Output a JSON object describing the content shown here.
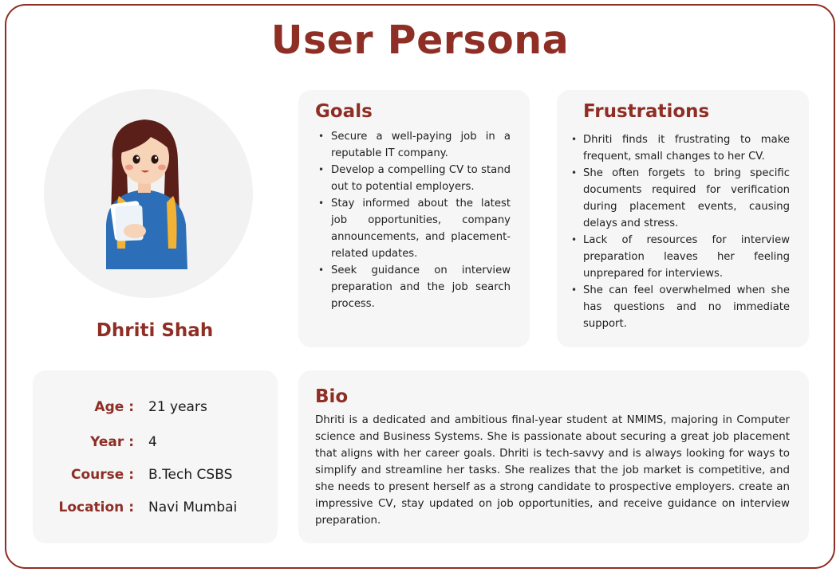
{
  "page": {
    "title": "User Persona"
  },
  "persona": {
    "name": "Dhriti Shah",
    "details": [
      {
        "label": "Age :",
        "value": "21 years"
      },
      {
        "label": "Year :",
        "value": "4"
      },
      {
        "label": "Course :",
        "value": "B.Tech CSBS"
      },
      {
        "label": "Location :",
        "value": "Navi Mumbai"
      }
    ]
  },
  "goals": {
    "title": "Goals",
    "items": [
      "Secure a well-paying job in a reputable IT company.",
      "Develop a compelling CV to stand out to potential employers.",
      "Stay informed about the latest job opportunities, company announcements, and placement-related updates.",
      "Seek guidance on interview preparation and the job search process."
    ]
  },
  "frustrations": {
    "title": "Frustrations",
    "items": [
      "Dhriti finds it frustrating to make frequent, small changes to her CV.",
      "She often forgets to bring specific documents required for verification during placement events, causing delays and stress.",
      "Lack of resources for interview preparation leaves her feeling unprepared for interviews.",
      "She can feel overwhelmed when she has questions and no immediate support."
    ]
  },
  "bio": {
    "title": "Bio",
    "text": "Dhriti is a dedicated and ambitious final-year student at NMIMS, majoring in Computer science and Business Systems. She is passionate about securing a great job placement that aligns with her career goals. Dhriti is tech-savvy and is always looking for ways to simplify and streamline her tasks. She realizes that the job market is competitive, and she needs to present herself as a strong candidate to prospective employers. create an impressive CV, stay updated on job opportunities, and receive guidance on interview preparation."
  },
  "colors": {
    "accent": "#8e2e25",
    "card_bg": "#f6f6f6",
    "avatar_bg": "#f2f2f2"
  }
}
